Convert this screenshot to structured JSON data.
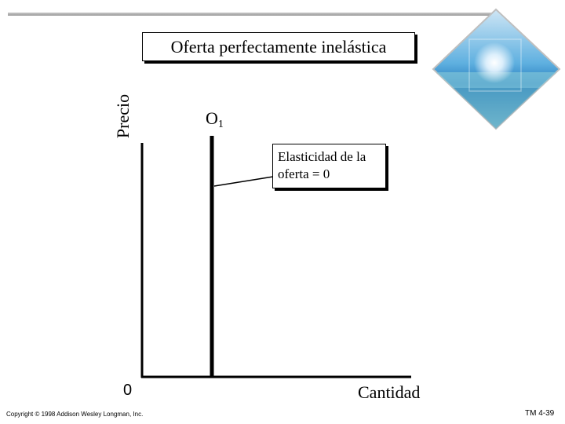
{
  "title": "Oferta perfectamente inelástica",
  "y_axis_label": "Precio",
  "x_axis_label": "Cantidad",
  "origin_label": "0",
  "curve_label": {
    "letter": "O",
    "subscript": "1"
  },
  "annotation": {
    "line1": "Elasticidad de la",
    "line2": "oferta  = 0"
  },
  "footer": {
    "copyright": "Copyright © 1998 Addison Wesley Longman, Inc.",
    "slide_number": "TM 4-39"
  },
  "colors": {
    "line": "#000000",
    "rule": "#a8a8a8",
    "sky": "#4aa3d8",
    "sea": "#1c6fa8"
  },
  "icons": [
    "beach-photo-diamond-icon"
  ]
}
